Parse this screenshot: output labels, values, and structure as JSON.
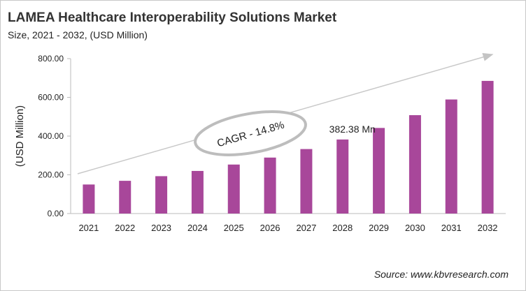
{
  "chart_data": {
    "type": "bar",
    "title": "LAMEA Healthcare Interoperability Solutions Market",
    "subtitle": "Size, 2021 - 2032, (USD Million)",
    "ylabel": "(USD Million)",
    "xlabel": "",
    "categories": [
      "2021",
      "2022",
      "2023",
      "2024",
      "2025",
      "2026",
      "2027",
      "2028",
      "2029",
      "2030",
      "2031",
      "2032"
    ],
    "values": [
      150,
      169,
      193,
      220,
      253,
      289,
      333,
      382.38,
      442,
      508,
      589,
      685
    ],
    "ylim": [
      0,
      800
    ],
    "yticks": [
      "0.00",
      "200.00",
      "400.00",
      "600.00",
      "800.00"
    ],
    "grid": false,
    "bar_color": "#A8479A",
    "annotations": {
      "cagr": "CAGR - 14.8%",
      "data_label": "382.38 Mn"
    },
    "source": "Source: www.kbvresearch.com"
  }
}
